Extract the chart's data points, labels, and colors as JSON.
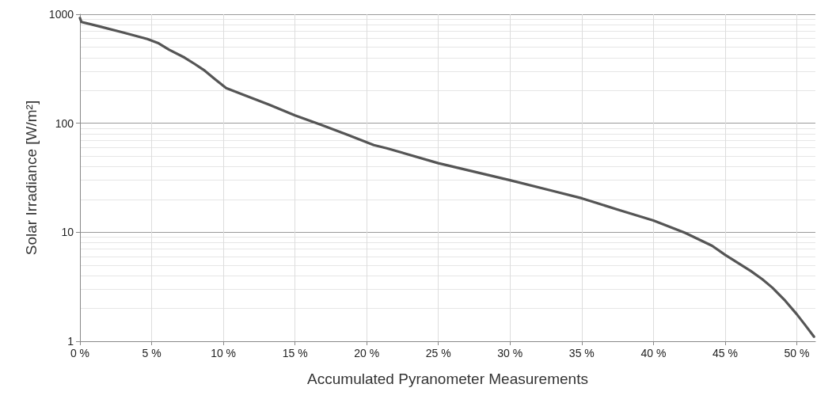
{
  "chart_data": {
    "type": "line",
    "xlabel": "Accumulated Pyranometer Measurements",
    "ylabel": "Solar Irradiance [W/m²]",
    "log": "y",
    "grid": true,
    "marker": "none",
    "line_style": "solid",
    "xlim": [
      0,
      51.3
    ],
    "xticks": [
      {
        "value": 0,
        "label": "0 %"
      },
      {
        "value": 5,
        "label": "5 %"
      },
      {
        "value": 10,
        "label": "10 %"
      },
      {
        "value": 15,
        "label": "15 %"
      },
      {
        "value": 20,
        "label": "20 %"
      },
      {
        "value": 25,
        "label": "25 %"
      },
      {
        "value": 30,
        "label": "30 %"
      },
      {
        "value": 35,
        "label": "35 %"
      },
      {
        "value": 40,
        "label": "40 %"
      },
      {
        "value": 45,
        "label": "45 %"
      },
      {
        "value": 50,
        "label": "50 %"
      }
    ],
    "ylim": [
      1,
      1000
    ],
    "yticks": [
      1,
      10,
      100,
      1000
    ],
    "series": [
      {
        "color": "#555555",
        "x": [
          0,
          0.1,
          1.2,
          3.0,
          4.7,
          5.5,
          6.2,
          7.3,
          8.0,
          8.7,
          9.4,
          10.2,
          11.3,
          13.2,
          15.0,
          16.8,
          18.7,
          20.5,
          21.4,
          25,
          30,
          33.0,
          35.0,
          37.6,
          40.0,
          42.2,
          44.1,
          45.0,
          46.8,
          47.6,
          48.3,
          49.2,
          50.0,
          50.6,
          51.2
        ],
        "values": [
          924,
          850,
          783,
          681,
          593,
          540,
          474,
          400,
          350,
          304,
          255,
          210,
          185,
          148,
          118,
          97,
          78,
          63,
          59,
          43,
          30,
          23.9,
          20.5,
          16.0,
          12.8,
          9.9,
          7.5,
          6.2,
          4.4,
          3.7,
          3.1,
          2.35,
          1.77,
          1.4,
          1.1
        ]
      }
    ]
  }
}
